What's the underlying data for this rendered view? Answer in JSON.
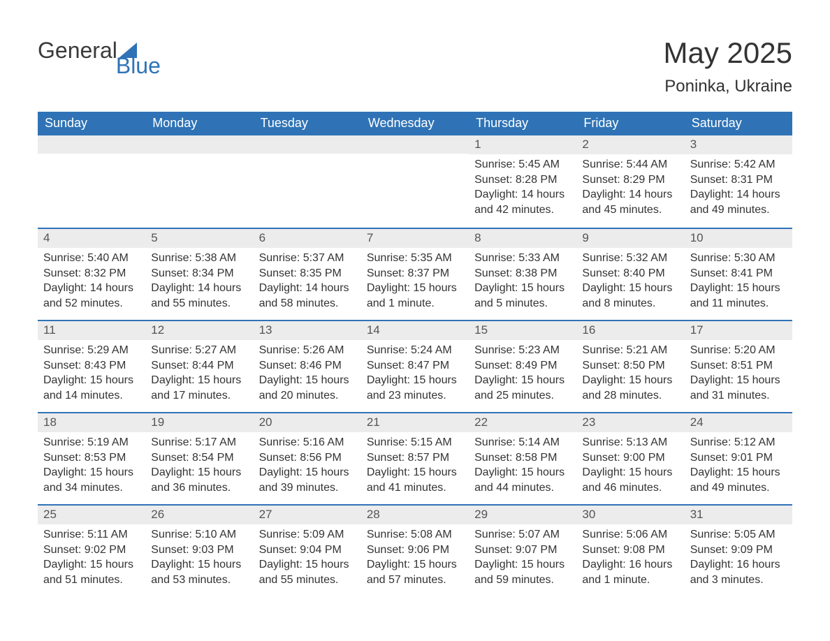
{
  "brand": {
    "word1": "General",
    "word2": "Blue",
    "accent_color": "#2f73b6"
  },
  "title": "May 2025",
  "location": "Poninka, Ukraine",
  "colors": {
    "header_bg": "#2f73b6",
    "header_text": "#ffffff",
    "daynum_bg": "#ececec",
    "text": "#333333",
    "row_border": "#2f73b6",
    "page_bg": "#ffffff"
  },
  "fonts": {
    "title_size_pt": 42,
    "subtitle_size_pt": 24,
    "header_size_pt": 18,
    "body_size_pt": 16
  },
  "weekdays": [
    "Sunday",
    "Monday",
    "Tuesday",
    "Wednesday",
    "Thursday",
    "Friday",
    "Saturday"
  ],
  "weeks": [
    [
      null,
      null,
      null,
      null,
      {
        "n": "1",
        "sunrise": "Sunrise: 5:45 AM",
        "sunset": "Sunset: 8:28 PM",
        "daylight": "Daylight: 14 hours and 42 minutes."
      },
      {
        "n": "2",
        "sunrise": "Sunrise: 5:44 AM",
        "sunset": "Sunset: 8:29 PM",
        "daylight": "Daylight: 14 hours and 45 minutes."
      },
      {
        "n": "3",
        "sunrise": "Sunrise: 5:42 AM",
        "sunset": "Sunset: 8:31 PM",
        "daylight": "Daylight: 14 hours and 49 minutes."
      }
    ],
    [
      {
        "n": "4",
        "sunrise": "Sunrise: 5:40 AM",
        "sunset": "Sunset: 8:32 PM",
        "daylight": "Daylight: 14 hours and 52 minutes."
      },
      {
        "n": "5",
        "sunrise": "Sunrise: 5:38 AM",
        "sunset": "Sunset: 8:34 PM",
        "daylight": "Daylight: 14 hours and 55 minutes."
      },
      {
        "n": "6",
        "sunrise": "Sunrise: 5:37 AM",
        "sunset": "Sunset: 8:35 PM",
        "daylight": "Daylight: 14 hours and 58 minutes."
      },
      {
        "n": "7",
        "sunrise": "Sunrise: 5:35 AM",
        "sunset": "Sunset: 8:37 PM",
        "daylight": "Daylight: 15 hours and 1 minute."
      },
      {
        "n": "8",
        "sunrise": "Sunrise: 5:33 AM",
        "sunset": "Sunset: 8:38 PM",
        "daylight": "Daylight: 15 hours and 5 minutes."
      },
      {
        "n": "9",
        "sunrise": "Sunrise: 5:32 AM",
        "sunset": "Sunset: 8:40 PM",
        "daylight": "Daylight: 15 hours and 8 minutes."
      },
      {
        "n": "10",
        "sunrise": "Sunrise: 5:30 AM",
        "sunset": "Sunset: 8:41 PM",
        "daylight": "Daylight: 15 hours and 11 minutes."
      }
    ],
    [
      {
        "n": "11",
        "sunrise": "Sunrise: 5:29 AM",
        "sunset": "Sunset: 8:43 PM",
        "daylight": "Daylight: 15 hours and 14 minutes."
      },
      {
        "n": "12",
        "sunrise": "Sunrise: 5:27 AM",
        "sunset": "Sunset: 8:44 PM",
        "daylight": "Daylight: 15 hours and 17 minutes."
      },
      {
        "n": "13",
        "sunrise": "Sunrise: 5:26 AM",
        "sunset": "Sunset: 8:46 PM",
        "daylight": "Daylight: 15 hours and 20 minutes."
      },
      {
        "n": "14",
        "sunrise": "Sunrise: 5:24 AM",
        "sunset": "Sunset: 8:47 PM",
        "daylight": "Daylight: 15 hours and 23 minutes."
      },
      {
        "n": "15",
        "sunrise": "Sunrise: 5:23 AM",
        "sunset": "Sunset: 8:49 PM",
        "daylight": "Daylight: 15 hours and 25 minutes."
      },
      {
        "n": "16",
        "sunrise": "Sunrise: 5:21 AM",
        "sunset": "Sunset: 8:50 PM",
        "daylight": "Daylight: 15 hours and 28 minutes."
      },
      {
        "n": "17",
        "sunrise": "Sunrise: 5:20 AM",
        "sunset": "Sunset: 8:51 PM",
        "daylight": "Daylight: 15 hours and 31 minutes."
      }
    ],
    [
      {
        "n": "18",
        "sunrise": "Sunrise: 5:19 AM",
        "sunset": "Sunset: 8:53 PM",
        "daylight": "Daylight: 15 hours and 34 minutes."
      },
      {
        "n": "19",
        "sunrise": "Sunrise: 5:17 AM",
        "sunset": "Sunset: 8:54 PM",
        "daylight": "Daylight: 15 hours and 36 minutes."
      },
      {
        "n": "20",
        "sunrise": "Sunrise: 5:16 AM",
        "sunset": "Sunset: 8:56 PM",
        "daylight": "Daylight: 15 hours and 39 minutes."
      },
      {
        "n": "21",
        "sunrise": "Sunrise: 5:15 AM",
        "sunset": "Sunset: 8:57 PM",
        "daylight": "Daylight: 15 hours and 41 minutes."
      },
      {
        "n": "22",
        "sunrise": "Sunrise: 5:14 AM",
        "sunset": "Sunset: 8:58 PM",
        "daylight": "Daylight: 15 hours and 44 minutes."
      },
      {
        "n": "23",
        "sunrise": "Sunrise: 5:13 AM",
        "sunset": "Sunset: 9:00 PM",
        "daylight": "Daylight: 15 hours and 46 minutes."
      },
      {
        "n": "24",
        "sunrise": "Sunrise: 5:12 AM",
        "sunset": "Sunset: 9:01 PM",
        "daylight": "Daylight: 15 hours and 49 minutes."
      }
    ],
    [
      {
        "n": "25",
        "sunrise": "Sunrise: 5:11 AM",
        "sunset": "Sunset: 9:02 PM",
        "daylight": "Daylight: 15 hours and 51 minutes."
      },
      {
        "n": "26",
        "sunrise": "Sunrise: 5:10 AM",
        "sunset": "Sunset: 9:03 PM",
        "daylight": "Daylight: 15 hours and 53 minutes."
      },
      {
        "n": "27",
        "sunrise": "Sunrise: 5:09 AM",
        "sunset": "Sunset: 9:04 PM",
        "daylight": "Daylight: 15 hours and 55 minutes."
      },
      {
        "n": "28",
        "sunrise": "Sunrise: 5:08 AM",
        "sunset": "Sunset: 9:06 PM",
        "daylight": "Daylight: 15 hours and 57 minutes."
      },
      {
        "n": "29",
        "sunrise": "Sunrise: 5:07 AM",
        "sunset": "Sunset: 9:07 PM",
        "daylight": "Daylight: 15 hours and 59 minutes."
      },
      {
        "n": "30",
        "sunrise": "Sunrise: 5:06 AM",
        "sunset": "Sunset: 9:08 PM",
        "daylight": "Daylight: 16 hours and 1 minute."
      },
      {
        "n": "31",
        "sunrise": "Sunrise: 5:05 AM",
        "sunset": "Sunset: 9:09 PM",
        "daylight": "Daylight: 16 hours and 3 minutes."
      }
    ]
  ]
}
